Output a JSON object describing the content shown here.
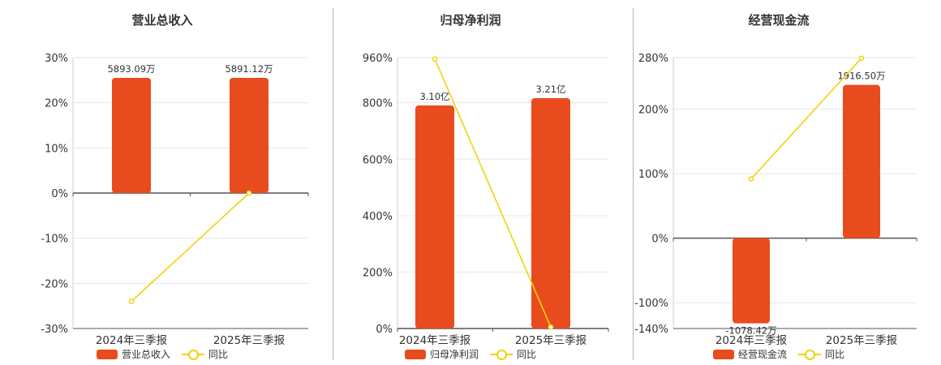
{
  "colors": {
    "bar": "#e84c1e",
    "line": "#f2d30a",
    "axis": "#555555",
    "grid": "#e6e6e6"
  },
  "chart_data": [
    {
      "type": "bar",
      "title": "营业总收入",
      "categories": [
        "2024年三季报",
        "2025年三季报"
      ],
      "bar_series": {
        "name": "营业总收入",
        "values": [
          5893.09,
          5891.12
        ],
        "labels": [
          "5893.09万",
          "5891.12万"
        ]
      },
      "line_series": {
        "name": "同比",
        "values": [
          -24,
          0
        ]
      },
      "y_ticks": [
        "30%",
        "20%",
        "10%",
        "0%",
        "-10%",
        "-20%",
        "-30%"
      ],
      "y_tick_values": [
        30,
        20,
        10,
        0,
        -10,
        -20,
        -30
      ],
      "ylim": [
        -30,
        30
      ],
      "legend": [
        "营业总收入",
        "同比"
      ],
      "grid": true
    },
    {
      "type": "bar",
      "title": "归母净利润",
      "categories": [
        "2024年三季报",
        "2025年三季报"
      ],
      "bar_series": {
        "name": "归母净利润",
        "values": [
          3.1,
          3.21
        ],
        "labels": [
          "3.10亿",
          "3.21亿"
        ]
      },
      "line_series": {
        "name": "同比",
        "values": [
          955,
          5
        ]
      },
      "y_ticks": [
        "960%",
        "800%",
        "600%",
        "400%",
        "200%",
        "0%"
      ],
      "y_tick_values": [
        960,
        800,
        600,
        400,
        200,
        0
      ],
      "ylim": [
        0,
        960
      ],
      "legend": [
        "归母净利润",
        "同比"
      ],
      "grid": true
    },
    {
      "type": "bar",
      "title": "经营现金流",
      "categories": [
        "2024年三季报",
        "2025年三季报"
      ],
      "bar_series": {
        "name": "经营现金流",
        "values": [
          -1078.42,
          1916.5
        ],
        "labels": [
          "-1078.42万",
          "1916.50万"
        ]
      },
      "line_series": {
        "name": "同比",
        "values": [
          92,
          279
        ]
      },
      "y_ticks": [
        "280%",
        "200%",
        "100%",
        "0%",
        "-100%",
        "-140%"
      ],
      "y_tick_values": [
        280,
        200,
        100,
        0,
        -100,
        -140
      ],
      "ylim": [
        -140,
        280
      ],
      "legend": [
        "经营现金流",
        "同比"
      ],
      "grid": true
    }
  ]
}
